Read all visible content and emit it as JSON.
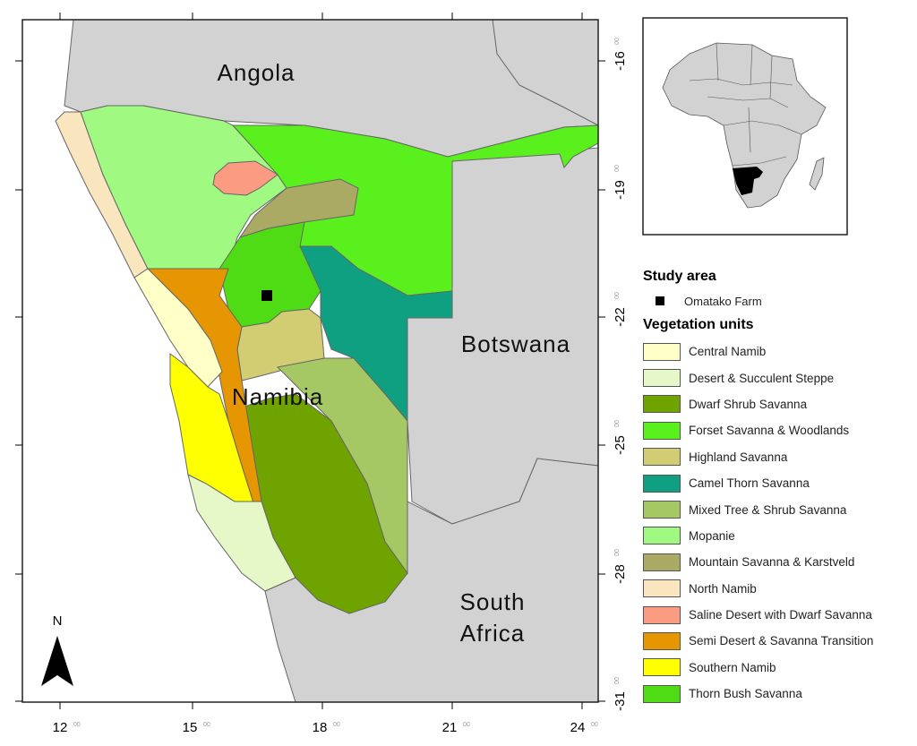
{
  "map": {
    "countries": {
      "angola": "Angola",
      "botswana": "Botswana",
      "namibia": "Namibia",
      "south_africa_line1": "South",
      "south_africa_line2": "Africa"
    },
    "north_label": "N",
    "x_ticks": [
      "12",
      "15",
      "18",
      "21",
      "24"
    ],
    "y_ticks": [
      "-16",
      "-19",
      "-22",
      "-25",
      "-28",
      "-31"
    ],
    "tick_superscript": "00",
    "colors": {
      "ocean": "#ffffff",
      "land": "#d2d2d2",
      "border": "#666666"
    }
  },
  "inset": {
    "highlight_color": "#000000",
    "land_color": "#d2d2d2"
  },
  "legend": {
    "study_area": {
      "title": "Study area",
      "items": [
        {
          "label": "Omatako Farm",
          "symbol": "black-square"
        }
      ]
    },
    "vegetation": {
      "title": "Vegetation units",
      "items": [
        {
          "label": "Central Namib",
          "color": "#ffffc8"
        },
        {
          "label": "Desert & Succulent Steppe",
          "color": "#e6f7c8"
        },
        {
          "label": "Dwarf Shrub Savanna",
          "color": "#6ea300"
        },
        {
          "label": "Forset Savanna & Woodlands",
          "color": "#5af01e"
        },
        {
          "label": "Highland Savanna",
          "color": "#d2cd73"
        },
        {
          "label": "Camel Thorn Savanna",
          "color": "#0fa082"
        },
        {
          "label": "Mixed Tree & Shrub Savanna",
          "color": "#a5c864"
        },
        {
          "label": "Mopanie",
          "color": "#a0fa82"
        },
        {
          "label": "Mountain Savanna & Karstveld",
          "color": "#aaaa64"
        },
        {
          "label": "North Namib",
          "color": "#fae6be"
        },
        {
          "label": "Saline Desert with Dwarf Savanna",
          "color": "#fa9b82"
        },
        {
          "label": "Semi Desert & Savanna Transition",
          "color": "#e69600"
        },
        {
          "label": "Southern Namib",
          "color": "#ffff00"
        },
        {
          "label": "Thorn Bush Savanna",
          "color": "#50dc14"
        }
      ]
    }
  }
}
